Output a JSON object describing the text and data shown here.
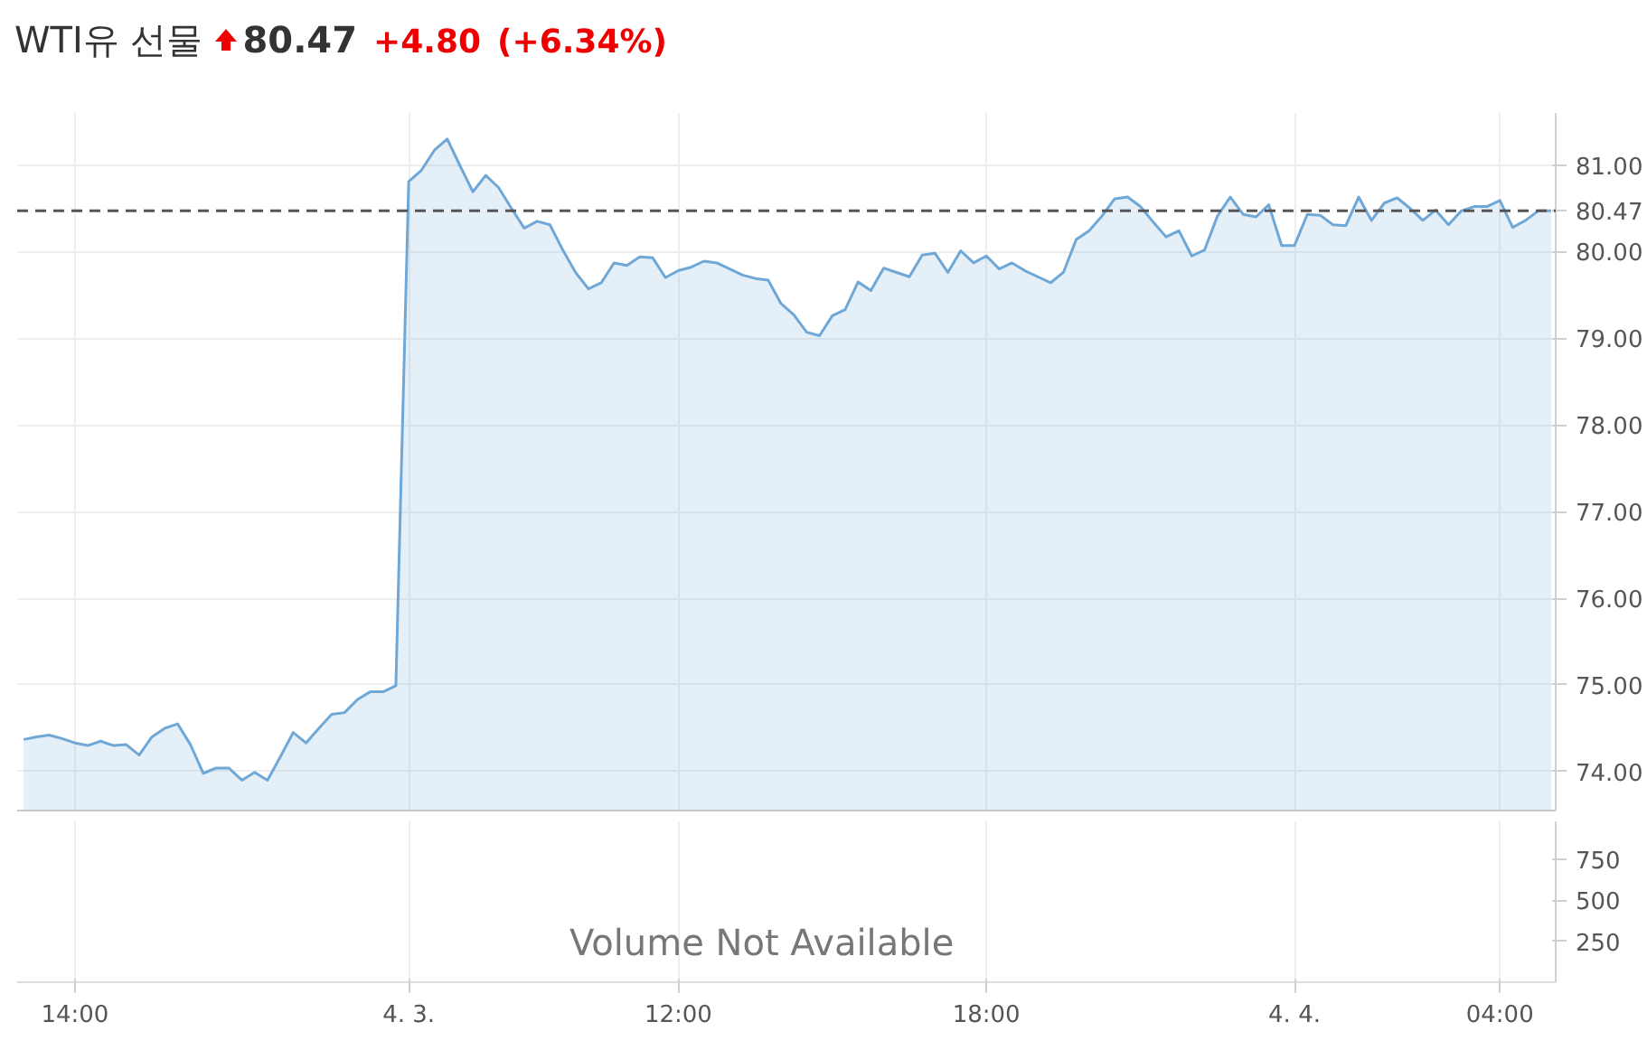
{
  "chart_data": [
    {
      "type": "area",
      "title": "WTI유 선물",
      "annotations": [
        "80.47",
        "+4.80",
        "(+6.34%)"
      ],
      "series": [
        {
          "color": "#6fa8d6",
          "values": [
            74.37,
            74.4,
            74.42,
            74.38,
            74.33,
            74.3,
            74.35,
            74.3,
            74.31,
            74.19,
            74.4,
            74.5,
            74.55,
            74.31,
            73.98,
            74.04,
            74.04,
            73.9,
            73.99,
            73.9,
            74.17,
            74.45,
            74.33,
            74.5,
            74.66,
            74.68,
            74.83,
            74.92,
            74.92,
            74.99,
            80.81,
            80.94,
            81.17,
            81.3,
            80.99,
            80.69,
            80.88,
            80.74,
            80.5,
            80.27,
            80.35,
            80.31,
            80.02,
            79.76,
            79.57,
            79.64,
            79.87,
            79.84,
            79.94,
            79.93,
            79.7,
            79.78,
            79.82,
            79.89,
            79.87,
            79.8,
            79.73,
            79.69,
            79.67,
            79.4,
            79.27,
            79.07,
            79.03,
            79.26,
            79.33,
            79.65,
            79.55,
            79.81,
            79.76,
            79.71,
            79.96,
            79.98,
            79.76,
            80.01,
            79.87,
            79.95,
            79.8,
            79.87,
            79.78,
            79.71,
            79.64,
            79.76,
            80.14,
            80.24,
            80.41,
            80.61,
            80.63,
            80.52,
            80.34,
            80.17,
            80.24,
            79.95,
            80.02,
            80.41,
            80.63,
            80.43,
            80.4,
            80.54,
            80.07,
            80.07,
            80.43,
            80.42,
            80.31,
            80.3,
            80.63,
            80.36,
            80.56,
            80.62,
            80.5,
            80.36,
            80.48,
            80.31,
            80.47,
            80.52,
            80.52,
            80.59,
            80.28,
            80.36,
            80.47,
            80.47
          ]
        }
      ],
      "ylim": [
        73.55,
        81.6
      ],
      "yticks": [
        {
          "value": 74,
          "label": "74.00"
        },
        {
          "value": 75,
          "label": "75.00"
        },
        {
          "value": 76,
          "label": "76.00"
        },
        {
          "value": 77,
          "label": "77.00"
        },
        {
          "value": 78,
          "label": "78.00"
        },
        {
          "value": 79,
          "label": "79.00"
        },
        {
          "value": 80,
          "label": "80.00"
        },
        {
          "value": 81,
          "label": "81.00"
        }
      ],
      "ref_lines": [
        {
          "axis": "y",
          "value": 80.47,
          "label": "80.47",
          "color": "#555555",
          "line_style": "dashed"
        }
      ],
      "grid": true,
      "tick_labels": "y"
    },
    {
      "type": "bar",
      "annotations": [
        "Volume Not Available"
      ],
      "categories": [
        null,
        null,
        null,
        null,
        "14:00",
        null,
        null,
        null,
        null,
        null,
        null,
        null,
        null,
        null,
        null,
        null,
        null,
        null,
        null,
        null,
        null,
        null,
        null,
        null,
        null,
        null,
        null,
        null,
        null,
        null,
        "4. 3.",
        null,
        null,
        null,
        null,
        null,
        null,
        null,
        null,
        null,
        null,
        null,
        null,
        null,
        null,
        null,
        null,
        null,
        null,
        null,
        null,
        "12:00",
        null,
        null,
        null,
        null,
        null,
        null,
        null,
        null,
        null,
        null,
        null,
        null,
        null,
        null,
        null,
        null,
        null,
        null,
        null,
        null,
        null,
        null,
        null,
        "18:00",
        null,
        null,
        null,
        null,
        null,
        null,
        null,
        null,
        null,
        null,
        null,
        null,
        null,
        null,
        null,
        null,
        null,
        null,
        null,
        null,
        null,
        null,
        null,
        "4. 4.",
        null,
        null,
        null,
        null,
        null,
        null,
        null,
        null,
        null,
        null,
        null,
        null,
        null,
        null,
        null,
        "04:00",
        null,
        null,
        null,
        null
      ],
      "values": [
        null,
        null,
        null,
        null,
        null,
        null,
        null,
        null,
        null,
        null,
        null,
        null,
        null,
        null,
        null,
        null,
        null,
        null,
        null,
        null,
        null,
        null,
        null,
        null,
        null,
        null,
        null,
        null,
        null,
        null,
        null,
        null,
        null,
        null,
        null,
        null,
        null,
        null,
        null,
        null,
        null,
        null,
        null,
        null,
        null,
        null,
        null,
        null,
        null,
        null,
        null,
        null,
        null,
        null,
        null,
        null,
        null,
        null,
        null,
        null,
        null,
        null,
        null,
        null,
        null,
        null,
        null,
        null,
        null,
        null,
        null,
        null,
        null,
        null,
        null,
        null,
        null,
        null,
        null,
        null,
        null,
        null,
        null,
        null,
        null,
        null,
        null,
        null,
        null,
        null,
        null,
        null,
        null,
        null,
        null,
        null,
        null,
        null,
        null,
        null,
        null,
        null,
        null,
        null,
        null,
        null,
        null,
        null,
        null,
        null,
        null,
        null,
        null,
        null,
        null,
        null,
        null,
        null,
        null,
        null
      ],
      "ylim": [
        0,
        980
      ],
      "yticks": [
        250,
        500,
        750
      ],
      "grid": "x"
    }
  ]
}
